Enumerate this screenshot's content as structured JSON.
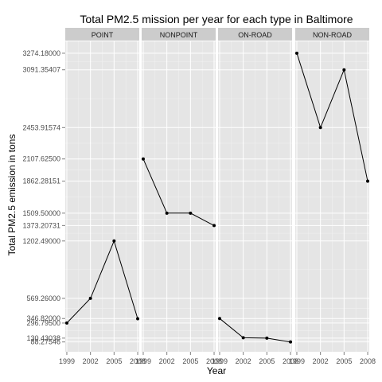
{
  "chart_data": {
    "type": "line",
    "title": "Total PM2.5 mission per year for each type in Baltimore",
    "xlabel": "Year",
    "ylabel": "Total PM2.5 emission in tons",
    "x_ticks": [
      "1999",
      "2002",
      "2005",
      "2008"
    ],
    "y_ticks": [
      "88.27546",
      "130.43038",
      "296.79500",
      "346.82000",
      "569.26000",
      "1202.49000",
      "1373.20731",
      "1509.50000",
      "1862.28151",
      "2107.62500",
      "2453.91574",
      "3091.35407",
      "3274.18000"
    ],
    "ylim": [
      -20,
      3405
    ],
    "xlim": [
      1998.8,
      2008.2
    ],
    "grid": true,
    "panel_background": "#e5e5e5",
    "strip_background": "#cccccc",
    "line_color": "#000000",
    "panels": [
      {
        "name": "POINT",
        "x": [
          1999,
          2002,
          2005,
          2008
        ],
        "y": [
          296.795,
          569.26,
          1202.49,
          344.975
        ]
      },
      {
        "name": "NONPOINT",
        "x": [
          1999,
          2002,
          2005,
          2008
        ],
        "y": [
          2107.625,
          1509.5,
          1509.5,
          1373.20731
        ]
      },
      {
        "name": "ON-ROAD",
        "x": [
          1999,
          2002,
          2005,
          2008
        ],
        "y": [
          346.82,
          134.30882,
          130.43038,
          88.27546
        ]
      },
      {
        "name": "NON-ROAD",
        "x": [
          1999,
          2002,
          2005,
          2008
        ],
        "y": [
          3274.18,
          2453.91574,
          3091.35407,
          1862.28151
        ]
      }
    ]
  }
}
